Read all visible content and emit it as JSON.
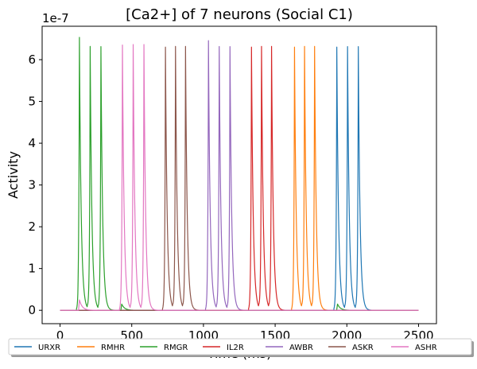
{
  "chart_data": {
    "type": "line",
    "title": "[Ca2+] of 7 neurons (Social C1)",
    "xlabel": "Time (ms)",
    "ylabel": "Activity",
    "y_offset_label": "1e-7",
    "xlim": [
      -125,
      2625
    ],
    "ylim": [
      -0.32,
      6.8
    ],
    "x_ticks": [
      0,
      500,
      1000,
      1500,
      2000,
      2500
    ],
    "y_ticks": [
      0,
      1,
      2,
      3,
      4,
      5,
      6
    ],
    "x_tick_labels": [
      "0",
      "500",
      "1000",
      "1500",
      "2000",
      "2500"
    ],
    "y_tick_labels": [
      "0",
      "1",
      "2",
      "3",
      "4",
      "5",
      "6"
    ],
    "grid": false,
    "legend_position": "bottom",
    "series": [
      {
        "name": "URXR",
        "color": "#1f77b4",
        "spikes": [
          1930,
          2005,
          2080
        ],
        "peak": 6.3,
        "onset": 1915,
        "trace_end": 2170,
        "blips": []
      },
      {
        "name": "RMHR",
        "color": "#ff7f0e",
        "spikes": [
          1635,
          1705,
          1775
        ],
        "peak": 6.3,
        "onset": 1620,
        "trace_end": 1870,
        "blips": []
      },
      {
        "name": "RMGR",
        "color": "#2ca02c",
        "spikes": [
          135,
          210,
          285
        ],
        "peak": 6.3,
        "onset": 115,
        "trace_end": 370,
        "blips": [
          [
            130,
            0.3
          ],
          [
            430,
            0.15
          ],
          [
            1935,
            0.15
          ]
        ]
      },
      {
        "name": "IL2R",
        "color": "#d62728",
        "spikes": [
          1335,
          1405,
          1475
        ],
        "peak": 6.3,
        "onset": 1315,
        "trace_end": 1570,
        "blips": []
      },
      {
        "name": "AWBR",
        "color": "#9467bd",
        "spikes": [
          1035,
          1110,
          1185
        ],
        "peak": 6.3,
        "onset": 1015,
        "trace_end": 1270,
        "blips": [
          [
            1030,
            0.2
          ]
        ]
      },
      {
        "name": "ASKR",
        "color": "#8c564b",
        "spikes": [
          735,
          805,
          875
        ],
        "peak": 6.3,
        "onset": 715,
        "trace_end": 970,
        "blips": []
      },
      {
        "name": "ASHR",
        "color": "#e377c2",
        "spikes": [
          435,
          510,
          585
        ],
        "peak": 6.35,
        "onset": 415,
        "trace_end": 670,
        "blips": [
          [
            135,
            0.25
          ]
        ]
      }
    ],
    "x_range_all": [
      0,
      2500
    ]
  }
}
